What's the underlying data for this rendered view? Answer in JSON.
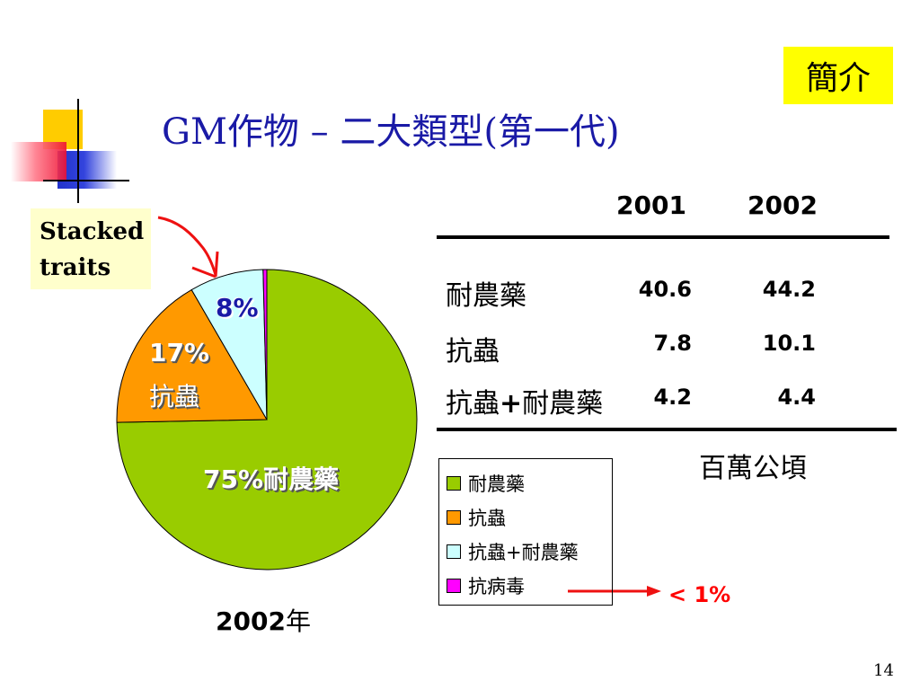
{
  "slide": {
    "title": "GM作物 – 二大類型(第一代)",
    "badge": "簡介",
    "page_number": "14"
  },
  "callout": {
    "line1": "Stacked",
    "line2": "traits"
  },
  "pie": {
    "labels": {
      "herbicide": "75%耐農藥",
      "insect_pct": "17%",
      "insect_name": "抗蟲",
      "stacked_pct": "8%"
    },
    "year": "2002",
    "year_suffix": "年"
  },
  "table": {
    "headers": [
      "2001",
      "2002"
    ],
    "rows": [
      {
        "label": "耐農藥",
        "v2001": "40.6",
        "v2002": "44.2"
      },
      {
        "label": "抗蟲",
        "v2001": "7.8",
        "v2002": "10.1"
      },
      {
        "label_a": "抗蟲",
        "label_plus": "+",
        "label_b": "耐農藥",
        "v2001": "4.2",
        "v2002": "4.4"
      }
    ],
    "unit": "百萬公頃"
  },
  "legend": {
    "items": [
      {
        "label": "耐農藥",
        "color": "#99cc00"
      },
      {
        "label": "抗蟲",
        "color": "#ff9900"
      },
      {
        "label": "抗蟲+耐農藥",
        "color": "#ccffff"
      },
      {
        "label": "抗病毒",
        "color": "#ff00ff"
      }
    ],
    "note": "< 1%"
  },
  "chart_data": {
    "type": "pie",
    "title": "",
    "categories": [
      "耐農藥",
      "抗蟲",
      "抗蟲+耐農藥",
      "抗病毒"
    ],
    "values": [
      75,
      17,
      8,
      0.4
    ],
    "colors": [
      "#99cc00",
      "#ff9900",
      "#ccffff",
      "#ff00ff"
    ],
    "legend_position": "right"
  }
}
